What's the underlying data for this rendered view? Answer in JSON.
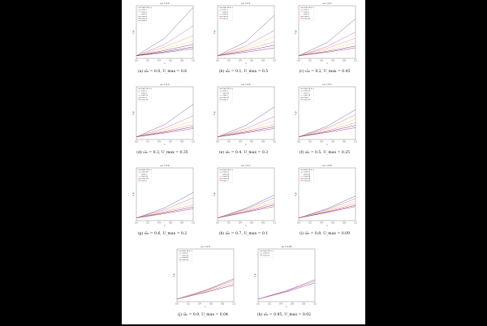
{
  "figure": {
    "y_axis_label": "δ_φ",
    "x_axis_label": "x",
    "x_ticks": [
      "0.0",
      "0.2",
      "0.4",
      "0.6",
      "0.8",
      "1.0"
    ]
  },
  "chart_data": [
    {
      "type": "line",
      "title": "ω₀ = 0.0",
      "caption": "(a) ω̂₀ = 0.0, U_max = 0.6",
      "xlim": [
        0,
        1
      ],
      "ylim": [
        0,
        6
      ],
      "series": [
        {
          "name": "U=0, W = ∞",
          "color": "#5b57a8",
          "x": [
            0,
            0.5,
            1
          ],
          "y": [
            0.3,
            2.3,
            5.8
          ]
        },
        {
          "name": "U=0.1",
          "color": "#c266b0",
          "x": [
            0,
            0.5,
            1
          ],
          "y": [
            0.3,
            1.6,
            3.7
          ]
        },
        {
          "name": "U=0.2",
          "color": "#e88a8a",
          "x": [
            0,
            0.5,
            1
          ],
          "y": [
            0.3,
            1.3,
            2.6
          ]
        },
        {
          "name": "U=0.3",
          "color": "#f0d060",
          "x": [
            0,
            0.5,
            1
          ],
          "y": [
            0.3,
            1.05,
            2.0
          ]
        },
        {
          "name": "U=0.4",
          "color": "#7a2a7a",
          "x": [
            0,
            0.5,
            1
          ],
          "y": [
            0.3,
            0.9,
            1.6
          ]
        },
        {
          "name": "U=0.5",
          "color": "#2a2a6a",
          "x": [
            0,
            0.5,
            1
          ],
          "y": [
            0.3,
            0.75,
            1.3
          ]
        },
        {
          "name": "U=0.6",
          "color": "#aa3377",
          "x": [
            0,
            0.5,
            1
          ],
          "y": [
            0.3,
            0.65,
            1.1
          ]
        }
      ]
    },
    {
      "type": "line",
      "title": "ω₀ = 0.1",
      "caption": "(b) ω̂₀ = 0.1, U_max = 0.5",
      "xlim": [
        0,
        1
      ],
      "ylim": [
        0,
        6
      ],
      "series": [
        {
          "name": "U=0, W = ∞",
          "color": "#5b57a8",
          "x": [
            0,
            0.5,
            1
          ],
          "y": [
            0.3,
            1.9,
            4.9
          ]
        },
        {
          "name": "U=0.1",
          "color": "#c266b0",
          "x": [
            0,
            0.5,
            1
          ],
          "y": [
            0.3,
            1.4,
            3.2
          ]
        },
        {
          "name": "U=0.2",
          "color": "#f0d060",
          "x": [
            0,
            0.5,
            1
          ],
          "y": [
            0.3,
            1.2,
            2.5
          ]
        },
        {
          "name": "U=0.3",
          "color": "#e88a8a",
          "x": [
            0,
            0.5,
            1
          ],
          "y": [
            0.3,
            1.0,
            1.9
          ]
        },
        {
          "name": "U=0.4",
          "color": "#7a2a7a",
          "x": [
            0,
            0.5,
            1
          ],
          "y": [
            0.3,
            0.85,
            1.5
          ]
        },
        {
          "name": "U=0.5",
          "color": "#aa3377",
          "x": [
            0,
            0.5,
            1
          ],
          "y": [
            0.3,
            0.7,
            1.2
          ]
        }
      ]
    },
    {
      "type": "line",
      "title": "ω₀ = 0.2",
      "caption": "(c) ω̂₀ = 0.2, U_max = 0.45",
      "xlim": [
        0,
        1
      ],
      "ylim": [
        0,
        6
      ],
      "series": [
        {
          "name": "U=0, W = ∞",
          "color": "#5b57a8",
          "x": [
            0,
            0.5,
            1
          ],
          "y": [
            0.3,
            1.8,
            4.5
          ]
        },
        {
          "name": "U=0.1",
          "color": "#c266b0",
          "x": [
            0,
            0.5,
            1
          ],
          "y": [
            0.3,
            1.35,
            3.0
          ]
        },
        {
          "name": "U=0.2",
          "color": "#e88a8a",
          "x": [
            0,
            0.5,
            1
          ],
          "y": [
            0.3,
            1.15,
            2.3
          ]
        },
        {
          "name": "U=0.3",
          "color": "#f0d060",
          "x": [
            0,
            0.5,
            1
          ],
          "y": [
            0.3,
            0.95,
            1.8
          ]
        },
        {
          "name": "U=0.4",
          "color": "#7a2a7a",
          "x": [
            0,
            0.5,
            1
          ],
          "y": [
            0.3,
            0.8,
            1.4
          ]
        },
        {
          "name": "U=0.45",
          "color": "#aa3377",
          "x": [
            0,
            0.5,
            1
          ],
          "y": [
            0.3,
            0.7,
            1.2
          ]
        }
      ]
    },
    {
      "type": "line",
      "title": "ω₀ = 0.3",
      "caption": "(d) ω̂₀ = 0.3, U_max = 0.35",
      "xlim": [
        0,
        1
      ],
      "ylim": [
        0,
        6
      ],
      "series": [
        {
          "name": "U=0, W = ∞",
          "color": "#5b57a8",
          "x": [
            0,
            0.5,
            1
          ],
          "y": [
            0.3,
            1.7,
            4.0
          ]
        },
        {
          "name": "U=0.1",
          "color": "#c266b0",
          "x": [
            0,
            0.5,
            1
          ],
          "y": [
            0.3,
            1.3,
            2.7
          ]
        },
        {
          "name": "U=0.2",
          "color": "#f0d060",
          "x": [
            0,
            0.5,
            1
          ],
          "y": [
            0.3,
            1.1,
            2.1
          ]
        },
        {
          "name": "U=0.25",
          "color": "#e88a8a",
          "x": [
            0,
            0.5,
            1
          ],
          "y": [
            0.3,
            0.95,
            1.7
          ]
        },
        {
          "name": "U=0.3",
          "color": "#7a2a7a",
          "x": [
            0,
            0.5,
            1
          ],
          "y": [
            0.3,
            0.85,
            1.45
          ]
        },
        {
          "name": "U=0.35",
          "color": "#aa3377",
          "x": [
            0,
            0.5,
            1
          ],
          "y": [
            0.3,
            0.75,
            1.25
          ]
        }
      ]
    },
    {
      "type": "line",
      "title": "ω₀ = 0.4",
      "caption": "(e) ω̂₀ = 0.4, U_max = 0.3",
      "xlim": [
        0,
        1
      ],
      "ylim": [
        0,
        6
      ],
      "series": [
        {
          "name": "U=0, W = ∞",
          "color": "#5b57a8",
          "x": [
            0,
            0.5,
            1
          ],
          "y": [
            0.3,
            1.6,
            3.7
          ]
        },
        {
          "name": "U=0.1",
          "color": "#c266b0",
          "x": [
            0,
            0.5,
            1
          ],
          "y": [
            0.3,
            1.25,
            2.6
          ]
        },
        {
          "name": "U=0.15",
          "color": "#f0d060",
          "x": [
            0,
            0.5,
            1
          ],
          "y": [
            0.3,
            1.1,
            2.1
          ]
        },
        {
          "name": "U=0.2",
          "color": "#e88a8a",
          "x": [
            0,
            0.5,
            1
          ],
          "y": [
            0.3,
            0.95,
            1.7
          ]
        },
        {
          "name": "U=0.25",
          "color": "#7a2a7a",
          "x": [
            0,
            0.5,
            1
          ],
          "y": [
            0.3,
            0.85,
            1.45
          ]
        },
        {
          "name": "U=0.3",
          "color": "#aa3377",
          "x": [
            0,
            0.5,
            1
          ],
          "y": [
            0.3,
            0.75,
            1.25
          ]
        }
      ]
    },
    {
      "type": "line",
      "title": "ω₀ = 0.5",
      "caption": "(f) ω̂₀ = 0.5, U_max = 0.25",
      "xlim": [
        0,
        1
      ],
      "ylim": [
        0,
        6
      ],
      "series": [
        {
          "name": "U=0, W = ∞",
          "color": "#5b57a8",
          "x": [
            0,
            0.5,
            1
          ],
          "y": [
            0.3,
            1.5,
            3.4
          ]
        },
        {
          "name": "U=0.05",
          "color": "#c266b0",
          "x": [
            0,
            0.5,
            1
          ],
          "y": [
            0.3,
            1.3,
            2.8
          ]
        },
        {
          "name": "U=0.1",
          "color": "#f0d060",
          "x": [
            0,
            0.5,
            1
          ],
          "y": [
            0.3,
            1.15,
            2.3
          ]
        },
        {
          "name": "U=0.15",
          "color": "#e88a8a",
          "x": [
            0,
            0.5,
            1
          ],
          "y": [
            0.3,
            1.0,
            1.9
          ]
        },
        {
          "name": "U=0.2",
          "color": "#7a2a7a",
          "x": [
            0,
            0.5,
            1
          ],
          "y": [
            0.3,
            0.9,
            1.6
          ]
        },
        {
          "name": "U=0.25",
          "color": "#aa3377",
          "x": [
            0,
            0.5,
            1
          ],
          "y": [
            0.3,
            0.8,
            1.35
          ]
        }
      ]
    },
    {
      "type": "line",
      "title": "ω₀ = 0.6",
      "caption": "(g) ω̂₀ = 0.6, U_max = 0.2",
      "xlim": [
        0,
        1
      ],
      "ylim": [
        0,
        6
      ],
      "series": [
        {
          "name": "U=0, W = ∞",
          "color": "#5b57a8",
          "x": [
            0,
            0.5,
            1
          ],
          "y": [
            0.3,
            1.45,
            3.2
          ]
        },
        {
          "name": "U=0.05",
          "color": "#c266b0",
          "x": [
            0,
            0.5,
            1
          ],
          "y": [
            0.3,
            1.25,
            2.6
          ]
        },
        {
          "name": "U=0.1",
          "color": "#f0d060",
          "x": [
            0,
            0.5,
            1
          ],
          "y": [
            0.3,
            1.1,
            2.2
          ]
        },
        {
          "name": "U=0.15",
          "color": "#e88a8a",
          "x": [
            0,
            0.5,
            1
          ],
          "y": [
            0.3,
            1.0,
            1.8
          ]
        },
        {
          "name": "U=0.175",
          "color": "#7a2a7a",
          "x": [
            0,
            0.5,
            1
          ],
          "y": [
            0.3,
            0.9,
            1.55
          ]
        },
        {
          "name": "U=0.2",
          "color": "#aa3377",
          "x": [
            0,
            0.5,
            1
          ],
          "y": [
            0.3,
            0.8,
            1.35
          ]
        }
      ]
    },
    {
      "type": "line",
      "title": "ω₀ = 0.7",
      "caption": "(h) ω̂₀ = 0.7, U_max = 0.1",
      "xlim": [
        0,
        1
      ],
      "ylim": [
        0,
        6
      ],
      "series": [
        {
          "name": "U=0, W = ∞",
          "color": "#5b57a8",
          "x": [
            0,
            0.5,
            1
          ],
          "y": [
            0.3,
            1.4,
            2.9
          ]
        },
        {
          "name": "U=0.02",
          "color": "#c266b0",
          "x": [
            0,
            0.5,
            1
          ],
          "y": [
            0.3,
            1.3,
            2.6
          ]
        },
        {
          "name": "U=0.04",
          "color": "#f0d060",
          "x": [
            0,
            0.5,
            1
          ],
          "y": [
            0.3,
            1.2,
            2.3
          ]
        },
        {
          "name": "U=0.06",
          "color": "#e88a8a",
          "x": [
            0,
            0.5,
            1
          ],
          "y": [
            0.3,
            1.1,
            2.0
          ]
        },
        {
          "name": "U=0.08",
          "color": "#7a2a7a",
          "x": [
            0,
            0.5,
            1
          ],
          "y": [
            0.3,
            1.0,
            1.8
          ]
        },
        {
          "name": "U=0.1",
          "color": "#aa3377",
          "x": [
            0,
            0.5,
            1
          ],
          "y": [
            0.3,
            0.95,
            1.6
          ]
        }
      ]
    },
    {
      "type": "line",
      "title": "ω₀ = 0.8",
      "caption": "(i) ω̂₀ = 0.8, U_max = 0.09",
      "xlim": [
        0,
        1
      ],
      "ylim": [
        0,
        6
      ],
      "series": [
        {
          "name": "U=0, W = ∞",
          "color": "#5b57a8",
          "x": [
            0,
            0.5,
            1
          ],
          "y": [
            0.3,
            1.35,
            2.8
          ]
        },
        {
          "name": "U=0.02",
          "color": "#c266b0",
          "x": [
            0,
            0.5,
            1
          ],
          "y": [
            0.3,
            1.25,
            2.5
          ]
        },
        {
          "name": "U=0.04",
          "color": "#f0d060",
          "x": [
            0,
            0.5,
            1
          ],
          "y": [
            0.3,
            1.15,
            2.2
          ]
        },
        {
          "name": "U=0.06",
          "color": "#e88a8a",
          "x": [
            0,
            0.5,
            1
          ],
          "y": [
            0.3,
            1.05,
            1.95
          ]
        },
        {
          "name": "U=0.08",
          "color": "#7a2a7a",
          "x": [
            0,
            0.5,
            1
          ],
          "y": [
            0.3,
            0.98,
            1.75
          ]
        },
        {
          "name": "U=0.09",
          "color": "#aa3377",
          "x": [
            0,
            0.5,
            1
          ],
          "y": [
            0.3,
            0.92,
            1.6
          ]
        }
      ]
    },
    {
      "type": "line",
      "title": "ω₀ = 0.9",
      "caption": "(j) ω̂₀ = 0.9, U_max = 0.04",
      "xlim": [
        0,
        1
      ],
      "ylim": [
        0,
        6
      ],
      "series": [
        {
          "name": "U=0, W = ∞",
          "color": "#5b57a8",
          "x": [
            0,
            0.5,
            1
          ],
          "y": [
            0.3,
            1.3,
            2.6
          ]
        },
        {
          "name": "U=0.01",
          "color": "#c266b0",
          "x": [
            0,
            0.5,
            1
          ],
          "y": [
            0.3,
            1.25,
            2.45
          ]
        },
        {
          "name": "U=0.02",
          "color": "#f0d060",
          "x": [
            0,
            0.5,
            1
          ],
          "y": [
            0.3,
            1.2,
            2.3
          ]
        },
        {
          "name": "U=0.03",
          "color": "#e88a8a",
          "x": [
            0,
            0.5,
            1
          ],
          "y": [
            0.3,
            1.12,
            2.1
          ]
        },
        {
          "name": "U=0.04",
          "color": "#7a2a7a",
          "x": [
            0,
            0.5,
            1
          ],
          "y": [
            0.3,
            1.05,
            1.9
          ]
        }
      ]
    },
    {
      "type": "line",
      "title": "ω₀ = 0.95",
      "caption": "(k) ω̂₀ = 0.95, U_max = 0.02",
      "xlim": [
        0,
        1
      ],
      "ylim": [
        0,
        6
      ],
      "series": [
        {
          "name": "U=0, W = ∞",
          "color": "#5b57a8",
          "x": [
            0,
            0.5,
            1
          ],
          "y": [
            0.3,
            1.25,
            2.5
          ]
        },
        {
          "name": "U=0.01",
          "color": "#c266b0",
          "x": [
            0,
            0.5,
            1
          ],
          "y": [
            0.3,
            1.2,
            2.35
          ]
        },
        {
          "name": "U=0.02",
          "color": "#aa3377",
          "x": [
            0,
            0.5,
            1
          ],
          "y": [
            0.3,
            1.12,
            2.15
          ]
        }
      ]
    }
  ]
}
